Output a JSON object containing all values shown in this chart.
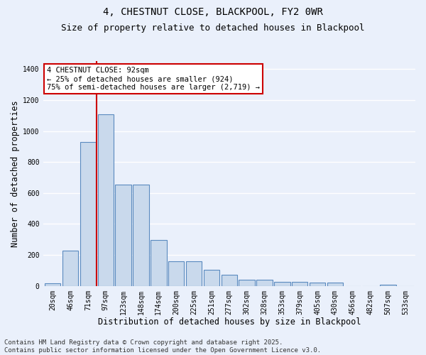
{
  "title_line1": "4, CHESTNUT CLOSE, BLACKPOOL, FY2 0WR",
  "title_line2": "Size of property relative to detached houses in Blackpool",
  "xlabel": "Distribution of detached houses by size in Blackpool",
  "ylabel": "Number of detached properties",
  "categories": [
    "20sqm",
    "46sqm",
    "71sqm",
    "97sqm",
    "123sqm",
    "148sqm",
    "174sqm",
    "200sqm",
    "225sqm",
    "251sqm",
    "277sqm",
    "302sqm",
    "328sqm",
    "353sqm",
    "379sqm",
    "405sqm",
    "430sqm",
    "456sqm",
    "482sqm",
    "507sqm",
    "533sqm"
  ],
  "values": [
    15,
    230,
    930,
    1110,
    655,
    655,
    295,
    160,
    160,
    105,
    70,
    40,
    40,
    25,
    25,
    20,
    20,
    0,
    0,
    10,
    0
  ],
  "bar_color": "#c9d9ec",
  "bar_edge_color": "#5a8abf",
  "background_color": "#eaf0fb",
  "grid_color": "#ffffff",
  "vline_color": "#cc0000",
  "vline_x_index": 3,
  "annotation_text": "4 CHESTNUT CLOSE: 92sqm\n← 25% of detached houses are smaller (924)\n75% of semi-detached houses are larger (2,719) →",
  "annotation_box_color": "#ffffff",
  "annotation_box_edge": "#cc0000",
  "ylim": [
    0,
    1450
  ],
  "footer_text": "Contains HM Land Registry data © Crown copyright and database right 2025.\nContains public sector information licensed under the Open Government Licence v3.0.",
  "title_fontsize": 10,
  "subtitle_fontsize": 9,
  "axis_label_fontsize": 8.5,
  "tick_fontsize": 7,
  "annotation_fontsize": 7.5,
  "footer_fontsize": 6.5
}
